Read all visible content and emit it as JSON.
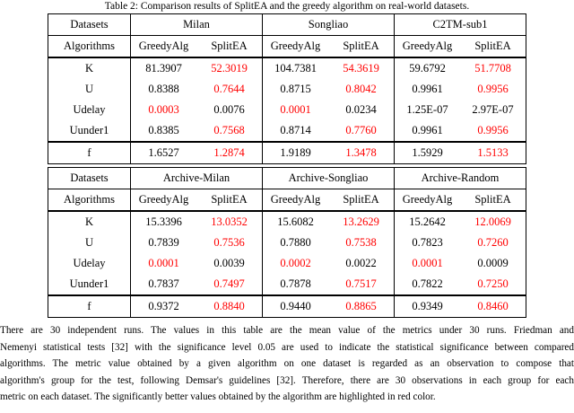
{
  "title": "Table 2: Comparison results of SplitEA and the greedy algorithm on real-world datasets.",
  "colors": {
    "highlight_red": "#ff0000",
    "text": "#000000",
    "background": "#ffffff"
  },
  "tables": [
    {
      "corner_row1": "Datasets",
      "corner_row2": "Algorithms",
      "groups": [
        "Milan",
        "Songliao",
        "C2TM-sub1"
      ],
      "algo_columns": [
        "GreedyAlg",
        "SplitEA",
        "GreedyAlg",
        "SplitEA",
        "GreedyAlg",
        "SplitEA"
      ],
      "rows": [
        {
          "metric": "K",
          "values": [
            "81.3907",
            "52.3019",
            "104.7381",
            "54.3619",
            "59.6792",
            "51.7708"
          ],
          "red": [
            false,
            true,
            false,
            true,
            false,
            true
          ]
        },
        {
          "metric": "U",
          "values": [
            "0.8388",
            "0.7644",
            "0.8715",
            "0.8042",
            "0.9961",
            "0.9956"
          ],
          "red": [
            false,
            true,
            false,
            true,
            false,
            true
          ]
        },
        {
          "metric": "Udelay",
          "values": [
            "0.0003",
            "0.0076",
            "0.0001",
            "0.0234",
            "1.25E-07",
            "2.97E-07"
          ],
          "red": [
            true,
            false,
            true,
            false,
            false,
            false
          ]
        },
        {
          "metric": "Uunder1",
          "values": [
            "0.8385",
            "0.7568",
            "0.8714",
            "0.7760",
            "0.9961",
            "0.9956"
          ],
          "red": [
            false,
            true,
            false,
            true,
            false,
            true
          ]
        },
        {
          "metric": "f",
          "values": [
            "1.6527",
            "1.2874",
            "1.9189",
            "1.3478",
            "1.5929",
            "1.5133"
          ],
          "red": [
            false,
            true,
            false,
            true,
            false,
            true
          ]
        }
      ]
    },
    {
      "corner_row1": "Datasets",
      "corner_row2": "Algorithms",
      "groups": [
        "Archive-Milan",
        "Archive-Songliao",
        "Archive-Random"
      ],
      "algo_columns": [
        "GreedyAlg",
        "SplitEA",
        "GreedyAlg",
        "SplitEA",
        "GreedyAlg",
        "SplitEA"
      ],
      "rows": [
        {
          "metric": "K",
          "values": [
            "15.3396",
            "13.0352",
            "15.6082",
            "13.2629",
            "15.2642",
            "12.0069"
          ],
          "red": [
            false,
            true,
            false,
            true,
            false,
            true
          ]
        },
        {
          "metric": "U",
          "values": [
            "0.7839",
            "0.7536",
            "0.7880",
            "0.7538",
            "0.7823",
            "0.7260"
          ],
          "red": [
            false,
            true,
            false,
            true,
            false,
            true
          ]
        },
        {
          "metric": "Udelay",
          "values": [
            "0.0001",
            "0.0039",
            "0.0002",
            "0.0022",
            "0.0001",
            "0.0009"
          ],
          "red": [
            true,
            false,
            true,
            false,
            true,
            false
          ]
        },
        {
          "metric": "Uunder1",
          "values": [
            "0.7837",
            "0.7497",
            "0.7878",
            "0.7517",
            "0.7822",
            "0.7250"
          ],
          "red": [
            false,
            true,
            false,
            true,
            false,
            true
          ]
        },
        {
          "metric": "f",
          "values": [
            "0.9372",
            "0.8840",
            "0.9440",
            "0.8865",
            "0.9349",
            "0.8460"
          ],
          "red": [
            false,
            true,
            false,
            true,
            false,
            true
          ]
        }
      ]
    }
  ],
  "footnote": {
    "lines": [
      "There are 30 independent runs.  The values in this table are the mean value of the metrics under 30 runs.  Friedman and",
      "Nemenyi statistical tests [32] with the significance level 0.05 are used to indicate the statistical significance between compared",
      "algorithms.  The metric value obtained by a given algorithm on one dataset is regarded as an observation to compose that",
      "algorithm's group for the test, following Demsar's guidelines [32].  Therefore, there are 30 observations in each group for each",
      "metric on each dataset.  The significantly better values obtained by the algorithm are highlighted in red color."
    ]
  }
}
